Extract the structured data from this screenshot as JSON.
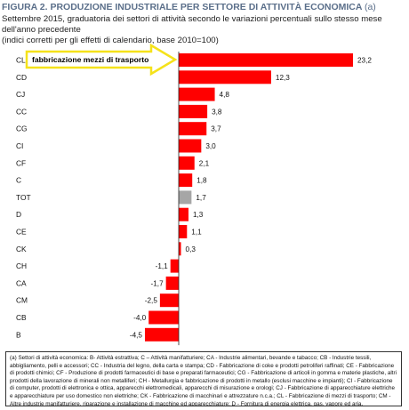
{
  "header": {
    "title": "FIGURA 2. PRODUZIONE INDUSTRIALE PER SETTORE DI ATTIVITÀ ECONOMICA",
    "title_suffix": "(a)",
    "subtitle_line1": "Settembre 2015, graduatoria dei settori di attività secondo le variazioni percentuali sullo stesso mese dell'anno precedente",
    "subtitle_line2": "(indici corretti per gli effetti di calendario, base 2010=100)"
  },
  "annotation": {
    "text": "fabbricazione mezzi di trasporto",
    "arrow_color": "#f5e21a"
  },
  "chart_data": {
    "type": "bar",
    "orientation": "horizontal",
    "categories": [
      "CL",
      "CD",
      "CJ",
      "CC",
      "CG",
      "CI",
      "CF",
      "C",
      "TOT",
      "D",
      "CE",
      "CK",
      "CH",
      "CA",
      "CM",
      "CB",
      "B"
    ],
    "values": [
      23.2,
      12.3,
      4.8,
      3.8,
      3.7,
      3.0,
      2.1,
      1.8,
      1.7,
      1.3,
      1.1,
      0.3,
      -1.1,
      -1.7,
      -2.5,
      -4.0,
      -4.5
    ],
    "value_labels": [
      "23,2",
      "12,3",
      "4,8",
      "3,8",
      "3,7",
      "3,0",
      "2,1",
      "1,8",
      "1,7",
      "1,3",
      "1,1",
      "0,3",
      "-1,1",
      "-1,7",
      "-2,5",
      "-4,0",
      "-4,5"
    ],
    "highlight_category": "TOT",
    "bar_color": "#ff0000",
    "highlight_color": "#a6a6a6",
    "xlim": [
      -5.5,
      25.5
    ]
  },
  "footnote": {
    "text": "(a) Settori di attività economica: B- Attività estrattiva; C – Attività manifatturiere; CA - Industrie alimentari, bevande e tabacco; CB - Industrie tessili, abbigliamento, pelli e accessori; CC - Industria del legno, della carta e stampa; CD - Fabbricazione di coke e prodotti petroliferi raffinati; CE - Fabbricazione di prodotti chimici; CF - Produzione di prodotti farmaceutici di base e preparati farmaceutici; CG - Fabbricazione di articoli in gomma e materie plastiche, altri prodotti della lavorazione di minerali non metalliferi; CH - Metallurgia e fabbricazione di prodotti in metallo (esclusi macchine e impianti); CI - Fabbricazione di computer, prodotti di elettronica e ottica, apparecchi elettromedicali, apparecchi di misurazione e orologi; CJ - Fabbricazione di apparecchiature elettriche e apparecchiature per uso domestico non elettriche; CK - Fabbricazione di macchinari e attrezzature n.c.a.; CL - Fabbricazione di mezzi di trasporto; CM - Altre industrie manifatturiere, riparazione e installazione di macchine ed apparecchiature; D - Fornitura di energia elettrica, gas, vapore ed aria."
  }
}
